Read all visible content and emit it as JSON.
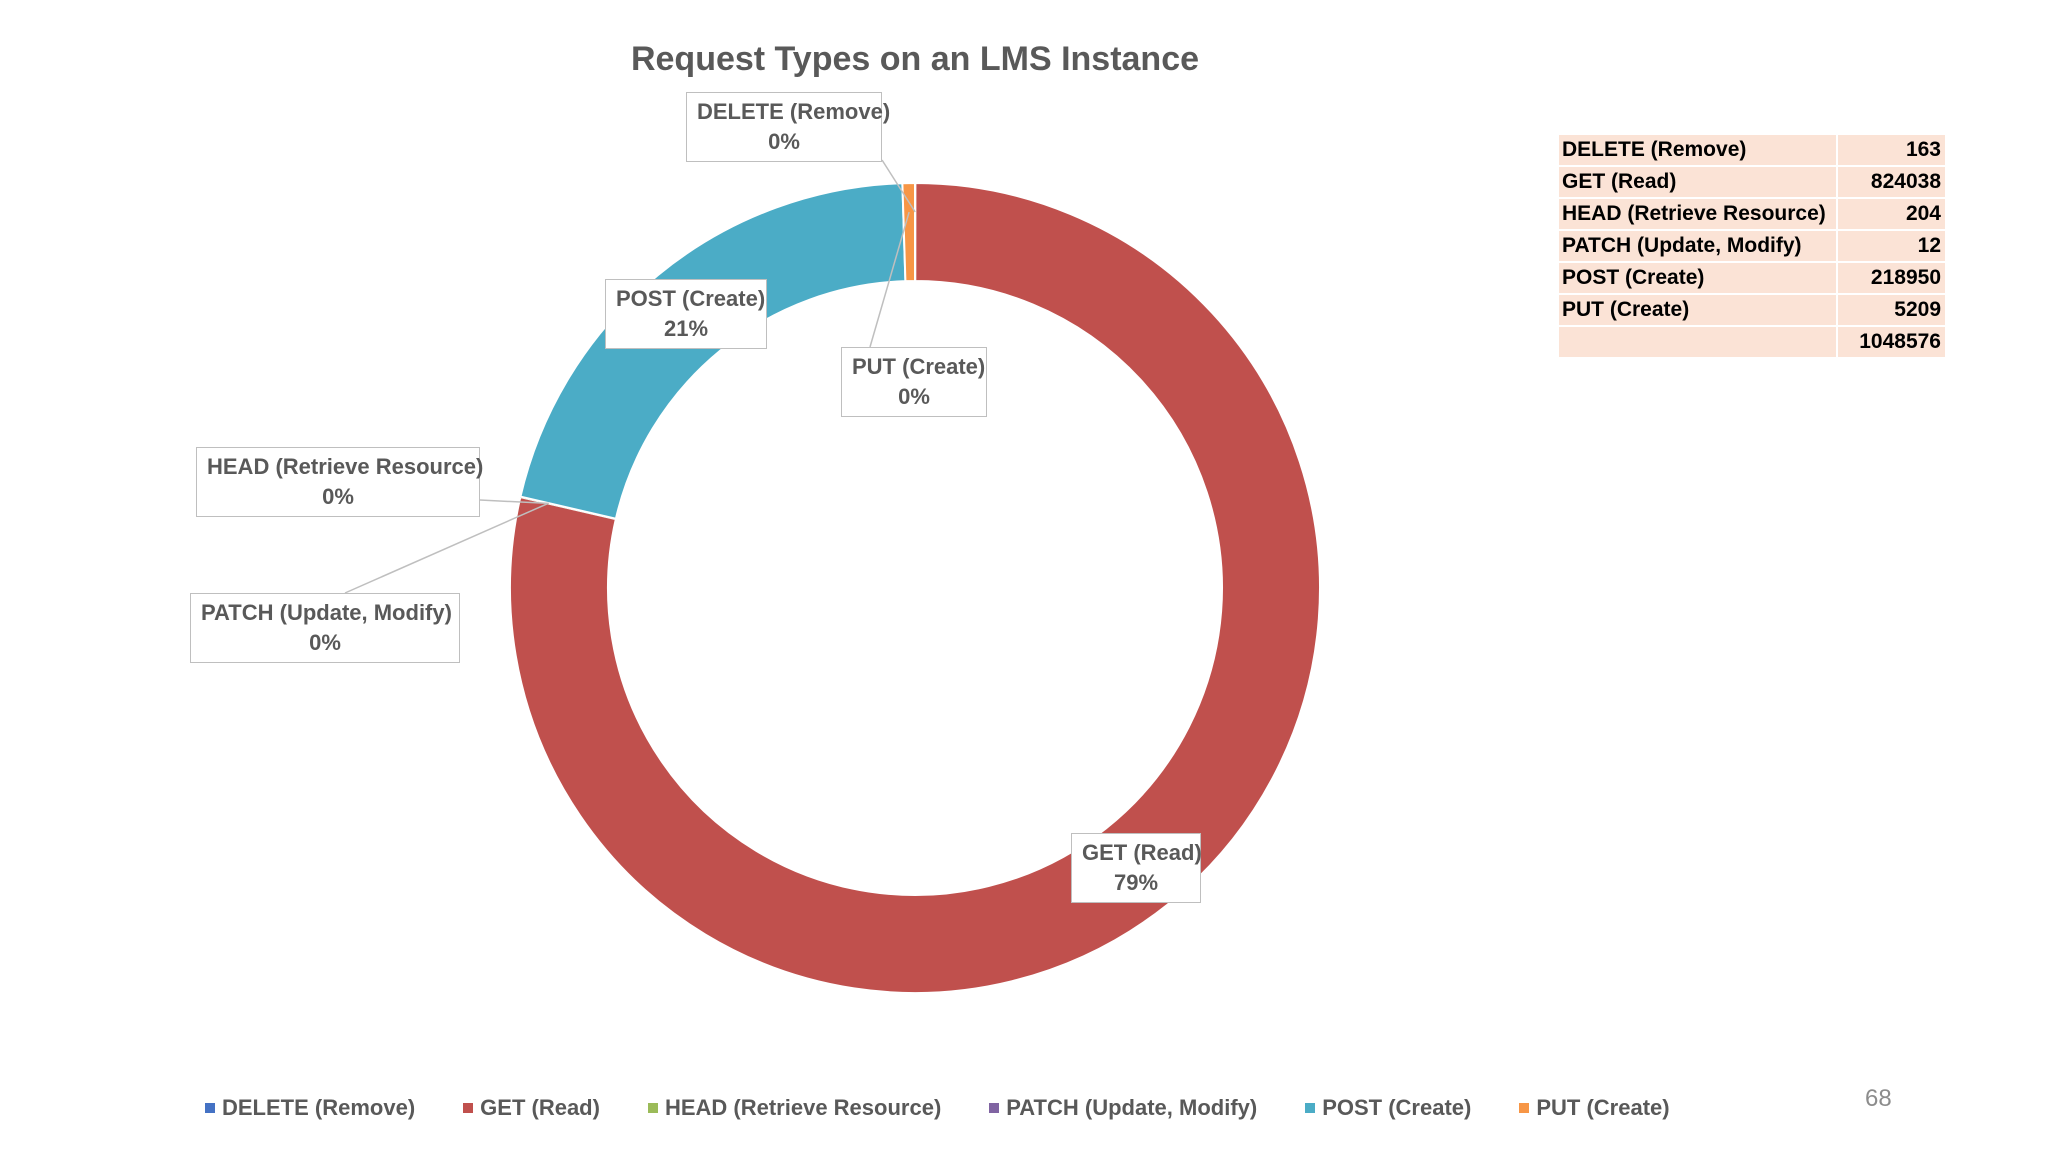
{
  "chart_data": {
    "type": "pie",
    "subtype": "doughnut",
    "title": "Request Types on an LMS Instance",
    "categories": [
      "DELETE (Remove)",
      "GET (Read)",
      "HEAD (Retrieve Resource)",
      "PATCH (Update, Modify)",
      "POST (Create)",
      "PUT (Create)"
    ],
    "values": [
      163,
      824038,
      204,
      12,
      218950,
      5209
    ],
    "percent_labels": [
      "0%",
      "79%",
      "0%",
      "0%",
      "21%",
      "0%"
    ],
    "colors": [
      "#4472c4",
      "#c0504d",
      "#9bbb59",
      "#8064a2",
      "#4bacc6",
      "#f79646"
    ],
    "legend_position": "bottom"
  },
  "table": {
    "rows": [
      {
        "label": "DELETE (Remove)",
        "value": "163"
      },
      {
        "label": "GET (Read)",
        "value": "824038"
      },
      {
        "label": "HEAD (Retrieve Resource)",
        "value": "204"
      },
      {
        "label": "PATCH (Update, Modify)",
        "value": "12"
      },
      {
        "label": "POST (Create)",
        "value": "218950"
      },
      {
        "label": "PUT (Create)",
        "value": "5209"
      }
    ],
    "total_label": "",
    "total": "1048576"
  },
  "page_number": "68"
}
